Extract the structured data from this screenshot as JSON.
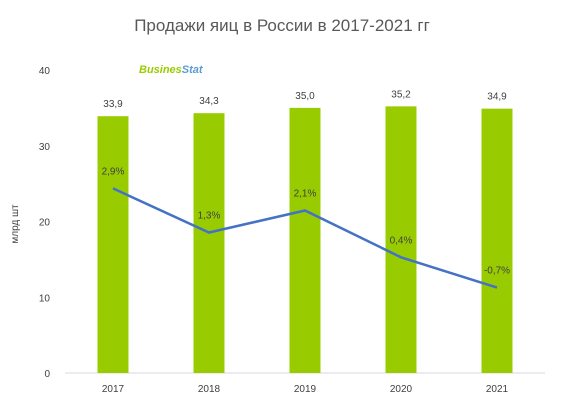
{
  "chart_data": {
    "type": "bar",
    "title": "Продажи яиц в России в 2017-2021 гг",
    "ylabel": "млрд шт",
    "xlabel": "",
    "categories": [
      "2017",
      "2018",
      "2019",
      "2020",
      "2021"
    ],
    "yticks": [
      "0",
      "10",
      "20",
      "30",
      "40"
    ],
    "ylim": [
      0,
      40
    ],
    "series": [
      {
        "type": "bar",
        "values": [
          33.9,
          34.3,
          35.0,
          35.2,
          34.9
        ],
        "labels": [
          "33,9",
          "34,3",
          "35,0",
          "35,2",
          "34,9"
        ],
        "color": "#99cc00"
      },
      {
        "type": "line",
        "values": [
          2.9,
          1.3,
          2.1,
          0.4,
          -0.7
        ],
        "labels": [
          "2,9%",
          "1,3%",
          "2,1%",
          "0,4%",
          "-0,7%"
        ],
        "color": "#4472c4"
      }
    ],
    "grid": false,
    "legend": "none"
  },
  "logo": {
    "text": "BusinesStat",
    "part1": "Busines",
    "part2": "Stat",
    "colors": {
      "part1": "#99cc00",
      "part2": "#5b9bd5"
    }
  }
}
